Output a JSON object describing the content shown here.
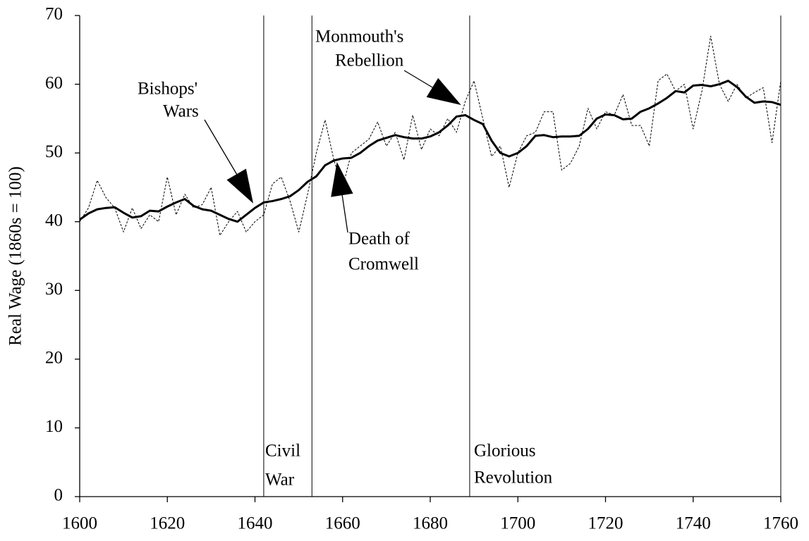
{
  "chart_data": {
    "type": "line",
    "ylabel": "Real Wage (1860s = 100)",
    "x": [
      1600,
      1602,
      1604,
      1606,
      1608,
      1610,
      1612,
      1614,
      1616,
      1618,
      1620,
      1622,
      1624,
      1626,
      1628,
      1630,
      1632,
      1634,
      1636,
      1638,
      1640,
      1642,
      1644,
      1646,
      1648,
      1650,
      1652,
      1654,
      1656,
      1658,
      1660,
      1662,
      1664,
      1666,
      1668,
      1670,
      1672,
      1674,
      1676,
      1678,
      1680,
      1682,
      1684,
      1686,
      1688,
      1690,
      1692,
      1694,
      1696,
      1698,
      1700,
      1702,
      1704,
      1706,
      1708,
      1710,
      1712,
      1714,
      1716,
      1718,
      1720,
      1722,
      1724,
      1726,
      1728,
      1730,
      1732,
      1734,
      1736,
      1738,
      1740,
      1742,
      1744,
      1746,
      1748,
      1750,
      1752,
      1754,
      1756,
      1758,
      1760
    ],
    "series": [
      {
        "color": "#000000",
        "dashed": true,
        "width": 1,
        "values": [
          40,
          42,
          46,
          43.5,
          42,
          38.5,
          42,
          39,
          41,
          40,
          46.5,
          41,
          44,
          42,
          42.5,
          45,
          38,
          40,
          41.5,
          38.5,
          40,
          41,
          45.5,
          46.5,
          43,
          38.5,
          44,
          50,
          54.8,
          49,
          45,
          50,
          51,
          52,
          54.5,
          51,
          53,
          49,
          55.5,
          50.5,
          53.5,
          52.5,
          55,
          53,
          57.5,
          60.5,
          55,
          49.5,
          51,
          45,
          50,
          52.5,
          53,
          56,
          56,
          47.5,
          48.5,
          51,
          56.5,
          53.5,
          56,
          55.5,
          58.5,
          54,
          54,
          51,
          60.5,
          61.5,
          59,
          60,
          53.5,
          59,
          67,
          60,
          57.5,
          60,
          58,
          58.8,
          59.5,
          51.5,
          60.5
        ]
      },
      {
        "color": "#000000",
        "dashed": false,
        "width": 3,
        "values": [
          40.3,
          41.2,
          41.8,
          42,
          42.1,
          41.3,
          40.6,
          40.8,
          41.6,
          41.5,
          42.2,
          42.8,
          43.3,
          42.3,
          41.8,
          41.6,
          41,
          40.4,
          40,
          41,
          42,
          42.8,
          43,
          43.3,
          43.7,
          44.6,
          45.8,
          46.6,
          48.2,
          48.9,
          49.2,
          49.3,
          50,
          51,
          51.8,
          52.2,
          52.6,
          52.3,
          52.1,
          52.1,
          52.4,
          53,
          54,
          55.3,
          55.5,
          54.8,
          54.2,
          51.8,
          50,
          49.5,
          50,
          51,
          52.5,
          52.6,
          52.3,
          52.4,
          52.4,
          52.5,
          53.5,
          55,
          55.6,
          55.5,
          54.9,
          55,
          56,
          56.5,
          57.2,
          58,
          59,
          58.8,
          59.8,
          59.9,
          59.7,
          60,
          60.5,
          59.6,
          58.2,
          57.3,
          57.5,
          57.4,
          57
        ]
      }
    ],
    "event_lines": [
      1642,
      1653,
      1689
    ],
    "annotations": [
      {
        "lines": [
          "Bishops'",
          "Wars"
        ]
      },
      {
        "lines": [
          "Monmouth's",
          "Rebellion"
        ]
      },
      {
        "lines": [
          "Death of",
          "Cromwell"
        ]
      },
      {
        "lines": [
          "Civil",
          "War"
        ]
      },
      {
        "lines": [
          "Glorious",
          "Revolution"
        ]
      }
    ],
    "xlim": [
      1600,
      1760
    ],
    "xticks": [
      1600,
      1620,
      1640,
      1660,
      1680,
      1700,
      1720,
      1740,
      1760
    ],
    "ylim": [
      0,
      70
    ],
    "yticks": [
      0,
      10,
      20,
      30,
      40,
      50,
      60,
      70
    ]
  }
}
